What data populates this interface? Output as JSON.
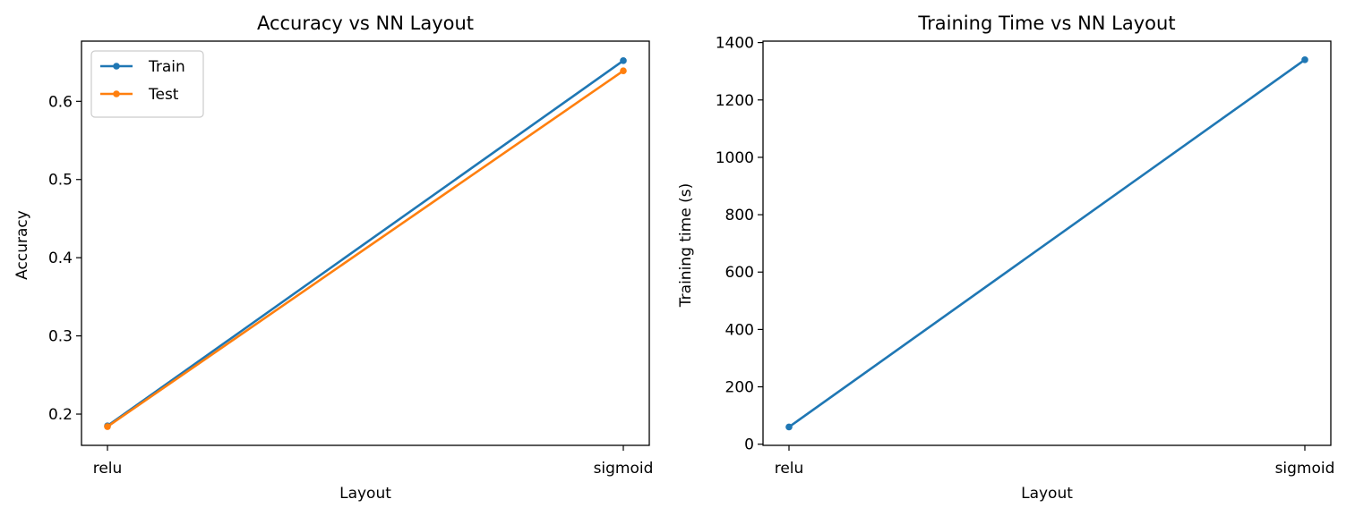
{
  "chart_data": [
    {
      "type": "line",
      "title": "Accuracy vs NN Layout",
      "xlabel": "Layout",
      "ylabel": "Accuracy",
      "categories": [
        "relu",
        "sigmoid"
      ],
      "ylim": [
        0.16,
        0.677
      ],
      "yticks": [
        0.2,
        0.3,
        0.4,
        0.5,
        0.6
      ],
      "ytick_labels": [
        "0.2",
        "0.3",
        "0.4",
        "0.5",
        "0.6"
      ],
      "grid": false,
      "legend_position": "top-left",
      "series": [
        {
          "name": "Train",
          "values": [
            0.185,
            0.652
          ],
          "color": "#1f77b4"
        },
        {
          "name": "Test",
          "values": [
            0.184,
            0.639
          ],
          "color": "#ff7f0e"
        }
      ]
    },
    {
      "type": "line",
      "title": "Training Time vs NN Layout",
      "xlabel": "Layout",
      "ylabel": "Training time (s)",
      "categories": [
        "relu",
        "sigmoid"
      ],
      "ylim": [
        -4,
        1405
      ],
      "yticks": [
        0,
        200,
        400,
        600,
        800,
        1000,
        1200,
        1400
      ],
      "ytick_labels": [
        "0",
        "200",
        "400",
        "600",
        "800",
        "1000",
        "1200",
        "1400"
      ],
      "grid": false,
      "series": [
        {
          "values": [
            60,
            1340
          ],
          "color": "#1f77b4"
        }
      ]
    }
  ]
}
